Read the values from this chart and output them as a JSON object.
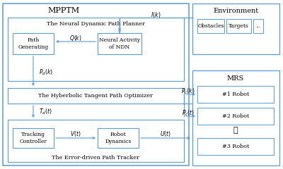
{
  "bg_color": "#ffffff",
  "box_edge_color": "#5b9bd5",
  "arrow_color": "#5b9bd5",
  "text_color": "#000000",
  "title_mpptm": "MPPTM",
  "title_env": "Environment",
  "title_mrs": "MRS",
  "label_ndpp": "The Neural Dynamic Path Planner",
  "label_hyp": "The Hyberbolic Tangent Path Optimizer",
  "label_errt": "The Error-driven Path Tracker",
  "label_pg": "Path\nGenerating",
  "label_ndn": "Neural Activity\nof NDN",
  "label_tc": "Tracking\nController",
  "label_rd": "Robot\nDynamics",
  "label_obs": "Obstacles",
  "label_tgt": "Targets",
  "label_dots": "...",
  "label_r1": "#1 Robot",
  "label_r2": "#2 Robot",
  "label_r3": "#3 Robot",
  "label_vdots": "⋮",
  "arrow_Ik": "$I(k)$",
  "arrow_Qk": "$Q(k)$",
  "arrow_Pdk": "$P_d(k)$",
  "arrow_Pck": "$P_c(k)$",
  "arrow_Pct": "$P_c(t)$",
  "arrow_Tdt": "$T_d(t)$",
  "arrow_Vt": "$V(t)$",
  "arrow_Ut": "$U(t)$"
}
